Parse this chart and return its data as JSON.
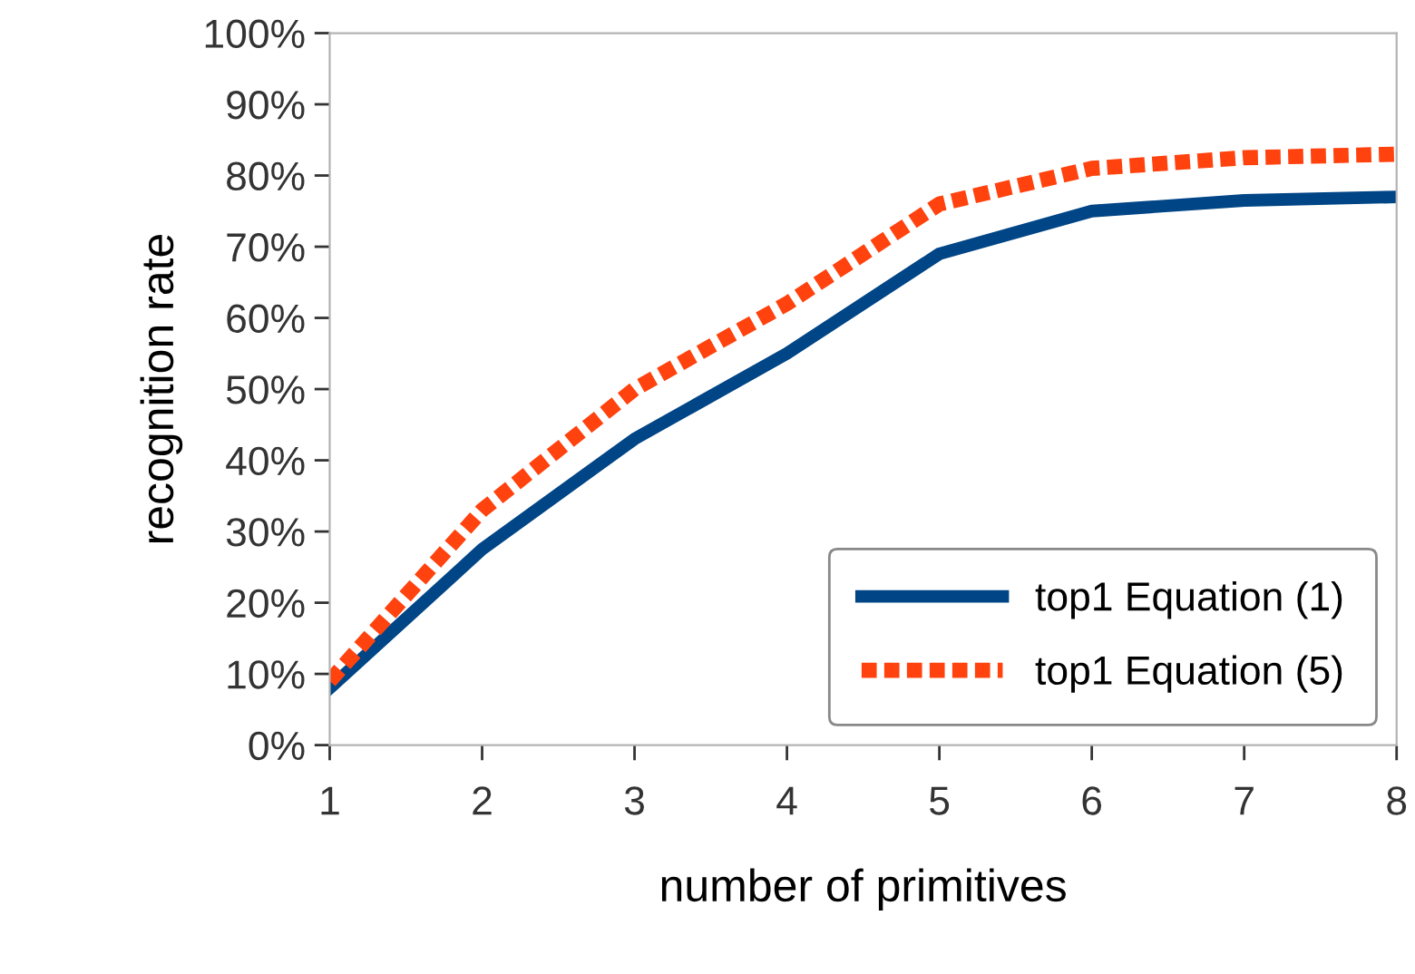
{
  "chart_data": {
    "type": "line",
    "xlabel": "number of primitives",
    "ylabel": "recognition rate",
    "x": [
      1,
      2,
      3,
      4,
      5,
      6,
      7,
      8
    ],
    "series": [
      {
        "name": "top1 Equation (1)",
        "color": "#004586",
        "line_style": "solid",
        "values": [
          8,
          27.5,
          43,
          55,
          69,
          75,
          76.5,
          77
        ]
      },
      {
        "name": "top1 Equation (5)",
        "color": "#ff420e",
        "line_style": "dotted",
        "values": [
          9,
          33,
          50,
          62,
          76,
          81,
          82.5,
          83
        ]
      }
    ],
    "xlim": [
      1,
      8
    ],
    "xticks": [
      1,
      2,
      3,
      4,
      5,
      6,
      7,
      8
    ],
    "ylim": [
      0,
      100
    ],
    "yticks": [
      {
        "value": 0,
        "label": "0%"
      },
      {
        "value": 10,
        "label": "10%"
      },
      {
        "value": 20,
        "label": "20%"
      },
      {
        "value": 30,
        "label": "30%"
      },
      {
        "value": 40,
        "label": "40%"
      },
      {
        "value": 50,
        "label": "50%"
      },
      {
        "value": 60,
        "label": "60%"
      },
      {
        "value": 70,
        "label": "70%"
      },
      {
        "value": 80,
        "label": "80%"
      },
      {
        "value": 90,
        "label": "90%"
      },
      {
        "value": 100,
        "label": "100%"
      }
    ],
    "legend": "lower right",
    "grid": false,
    "marker": "none"
  }
}
